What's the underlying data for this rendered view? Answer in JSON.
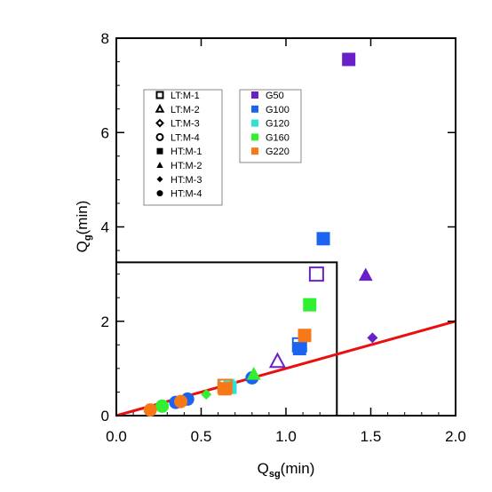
{
  "chart_data": {
    "type": "scatter",
    "title": "",
    "xlabel": "Q",
    "xlabel_sub": "sg",
    "xlabel_unit": "(min)",
    "ylabel": "Q",
    "ylabel_sub": "g",
    "ylabel_unit": "(min)",
    "xlim": [
      0,
      2.0
    ],
    "ylim": [
      0,
      8
    ],
    "xticks": [
      {
        "v": 0.0,
        "label": "0.0"
      },
      {
        "v": 0.5,
        "label": "0.5"
      },
      {
        "v": 1.0,
        "label": "1.0"
      },
      {
        "v": 1.5,
        "label": "1.5"
      },
      {
        "v": 2.0,
        "label": "2.0"
      }
    ],
    "yticks": [
      {
        "v": 0,
        "label": "0"
      },
      {
        "v": 2,
        "label": "2"
      },
      {
        "v": 4,
        "label": "4"
      },
      {
        "v": 6,
        "label": "6"
      },
      {
        "v": 8,
        "label": "8"
      }
    ],
    "grid": false,
    "colors": {
      "G50": "#6a20c8",
      "G100": "#1c64f0",
      "G120": "#30e0d0",
      "G160": "#30f030",
      "G220": "#f87818",
      "fit_line": "#e81010"
    },
    "legend_markers": [
      {
        "label": "LT:M-1",
        "marker": "square",
        "filled": false
      },
      {
        "label": "LT:M-2",
        "marker": "triangle",
        "filled": false
      },
      {
        "label": "LT:M-3",
        "marker": "diamond",
        "filled": false
      },
      {
        "label": "LT:M-4",
        "marker": "circle",
        "filled": false
      },
      {
        "label": "HT:M-1",
        "marker": "square",
        "filled": true
      },
      {
        "label": "HT:M-2",
        "marker": "triangle",
        "filled": true
      },
      {
        "label": "HT:M-3",
        "marker": "diamond",
        "filled": true
      },
      {
        "label": "HT:M-4",
        "marker": "circle",
        "filled": true
      }
    ],
    "legend_groups": [
      {
        "label": "G50",
        "color_key": "G50"
      },
      {
        "label": "G100",
        "color_key": "G100"
      },
      {
        "label": "G120",
        "color_key": "G120"
      },
      {
        "label": "G160",
        "color_key": "G160"
      },
      {
        "label": "G220",
        "color_key": "G220"
      }
    ],
    "fit_line": {
      "x": [
        0.0,
        2.0
      ],
      "y": [
        0.0,
        2.0
      ]
    },
    "threshold_box": {
      "x": [
        0.0,
        1.3
      ],
      "y": [
        0.0,
        3.25
      ]
    },
    "points": [
      {
        "x": 1.37,
        "y": 7.55,
        "group": "G50",
        "marker": "square",
        "filled": true
      },
      {
        "x": 1.47,
        "y": 2.98,
        "group": "G50",
        "marker": "triangle",
        "filled": true
      },
      {
        "x": 1.51,
        "y": 1.65,
        "group": "G50",
        "marker": "diamond",
        "filled": true
      },
      {
        "x": 1.18,
        "y": 3.0,
        "group": "G50",
        "marker": "square",
        "filled": false
      },
      {
        "x": 0.95,
        "y": 1.15,
        "group": "G50",
        "marker": "triangle",
        "filled": false
      },
      {
        "x": 1.22,
        "y": 3.75,
        "group": "G100",
        "marker": "square",
        "filled": true
      },
      {
        "x": 1.08,
        "y": 1.5,
        "group": "G100",
        "marker": "square",
        "filled": false
      },
      {
        "x": 1.08,
        "y": 1.42,
        "group": "G100",
        "marker": "square",
        "filled": true
      },
      {
        "x": 0.8,
        "y": 0.8,
        "group": "G100",
        "marker": "circle",
        "filled": true
      },
      {
        "x": 0.42,
        "y": 0.35,
        "group": "G100",
        "marker": "circle",
        "filled": true
      },
      {
        "x": 0.35,
        "y": 0.28,
        "group": "G100",
        "marker": "circle",
        "filled": true
      },
      {
        "x": 0.65,
        "y": 0.62,
        "group": "G120",
        "marker": "square",
        "filled": false
      },
      {
        "x": 0.67,
        "y": 0.6,
        "group": "G120",
        "marker": "square",
        "filled": true
      },
      {
        "x": 0.27,
        "y": 0.2,
        "group": "G120",
        "marker": "circle",
        "filled": true
      },
      {
        "x": 1.14,
        "y": 2.35,
        "group": "G160",
        "marker": "square",
        "filled": true
      },
      {
        "x": 0.81,
        "y": 0.88,
        "group": "G160",
        "marker": "triangle",
        "filled": true
      },
      {
        "x": 0.53,
        "y": 0.45,
        "group": "G160",
        "marker": "diamond",
        "filled": true
      },
      {
        "x": 0.27,
        "y": 0.2,
        "group": "G160",
        "marker": "circle",
        "filled": true
      },
      {
        "x": 1.11,
        "y": 1.7,
        "group": "G220",
        "marker": "square",
        "filled": true
      },
      {
        "x": 0.64,
        "y": 0.62,
        "group": "G220",
        "marker": "square",
        "filled": false
      },
      {
        "x": 0.64,
        "y": 0.57,
        "group": "G220",
        "marker": "square",
        "filled": true
      },
      {
        "x": 0.38,
        "y": 0.3,
        "group": "G220",
        "marker": "circle",
        "filled": true
      },
      {
        "x": 0.2,
        "y": 0.12,
        "group": "G220",
        "marker": "circle",
        "filled": true
      }
    ]
  }
}
